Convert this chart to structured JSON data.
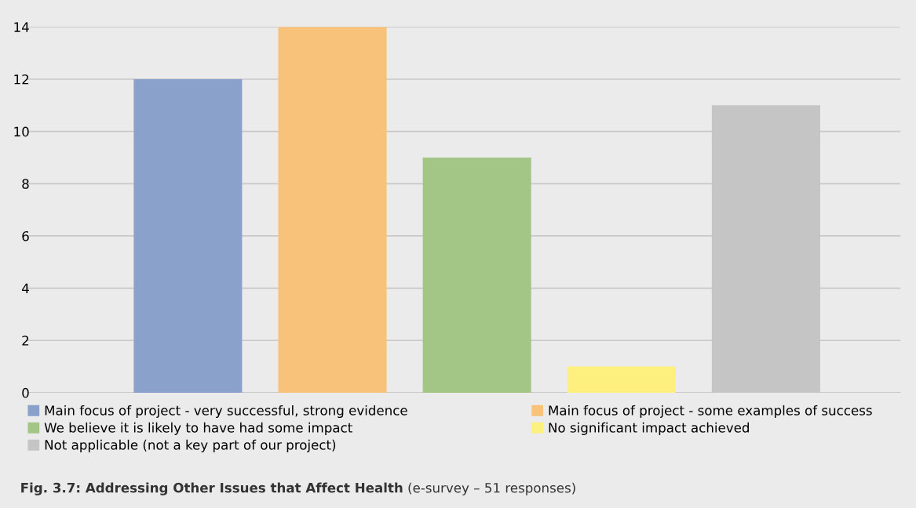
{
  "chart_data": {
    "type": "bar",
    "title": "Fig. 3.7: Addressing Other Issues that Affect Health",
    "subtitle": "(e-survey – 51 responses)",
    "categories": [
      null,
      null,
      null,
      null,
      null
    ],
    "series": [
      {
        "name": "Main focus of project - very successful, strong evidence",
        "color": "#8aa2cb",
        "values": [
          12,
          null,
          null,
          null,
          null
        ]
      },
      {
        "name": "Main focus of project - some examples of success",
        "color": "#f9c27a",
        "values": [
          null,
          14,
          null,
          null,
          null
        ]
      },
      {
        "name": "We believe it is likely to have had some impact",
        "color": "#a3c586",
        "values": [
          null,
          null,
          9,
          null,
          null
        ]
      },
      {
        "name": "No significant impact achieved",
        "color": "#fdf07e",
        "values": [
          null,
          null,
          null,
          1,
          null
        ]
      },
      {
        "name": "Not applicable (not a key part of our project)",
        "color": "#c5c5c5",
        "values": [
          null,
          null,
          null,
          null,
          11
        ]
      }
    ],
    "ylim": [
      0,
      14
    ],
    "yticks": [
      0,
      2,
      4,
      6,
      8,
      10,
      12,
      14
    ],
    "grid": "y",
    "legend": "bottom"
  }
}
